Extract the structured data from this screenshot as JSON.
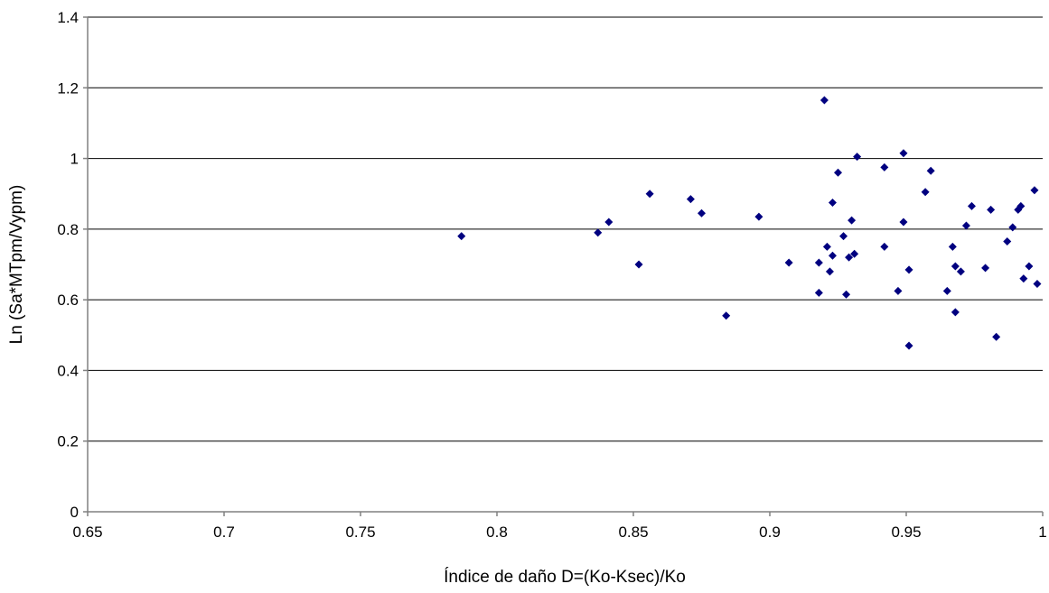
{
  "chart_data": {
    "type": "scatter",
    "title": "",
    "xlabel": "Índice de daño D=(Ko-Ksec)/Ko",
    "ylabel": "Ln (Sa*MTpm/Vypm)",
    "xlim": [
      0.65,
      1
    ],
    "ylim": [
      0,
      1.4
    ],
    "x_ticks": [
      0.65,
      0.7,
      0.75,
      0.8,
      0.85,
      0.9,
      0.95,
      1
    ],
    "x_tick_labels": [
      "0.65",
      "0.7",
      "0.75",
      "0.8",
      "0.85",
      "0.9",
      "0.95",
      "1"
    ],
    "y_ticks": [
      0,
      0.2,
      0.4,
      0.6,
      0.8,
      1,
      1.2,
      1.4
    ],
    "y_tick_labels": [
      "0",
      "0.2",
      "0.4",
      "0.6",
      "0.8",
      "1",
      "1.2",
      "1.4"
    ],
    "grid": "horizontal",
    "legend": "none",
    "marker": "diamond",
    "marker_color": "#000080",
    "series": [
      {
        "x": [
          0.787,
          0.837,
          0.841,
          0.852,
          0.856,
          0.871,
          0.875,
          0.884,
          0.896,
          0.907,
          0.918,
          0.918,
          0.92,
          0.921,
          0.922,
          0.923,
          0.923,
          0.925,
          0.927,
          0.928,
          0.929,
          0.93,
          0.931,
          0.932,
          0.942,
          0.942,
          0.947,
          0.949,
          0.949,
          0.951,
          0.951,
          0.957,
          0.959,
          0.965,
          0.967,
          0.968,
          0.968,
          0.97,
          0.972,
          0.974,
          0.979,
          0.981,
          0.983,
          0.987,
          0.989,
          0.991,
          0.992,
          0.993,
          0.995,
          0.997,
          0.998
        ],
        "y": [
          0.78,
          0.79,
          0.82,
          0.7,
          0.9,
          0.885,
          0.845,
          0.555,
          0.835,
          0.705,
          0.705,
          0.62,
          1.165,
          0.75,
          0.68,
          0.725,
          0.875,
          0.96,
          0.78,
          0.615,
          0.72,
          0.825,
          0.73,
          1.005,
          0.975,
          0.75,
          0.625,
          1.015,
          0.82,
          0.685,
          0.47,
          0.905,
          0.965,
          0.625,
          0.75,
          0.695,
          0.565,
          0.68,
          0.81,
          0.865,
          0.69,
          0.855,
          0.495,
          0.765,
          0.805,
          0.855,
          0.865,
          0.66,
          0.695,
          0.91,
          0.645
        ]
      }
    ]
  }
}
